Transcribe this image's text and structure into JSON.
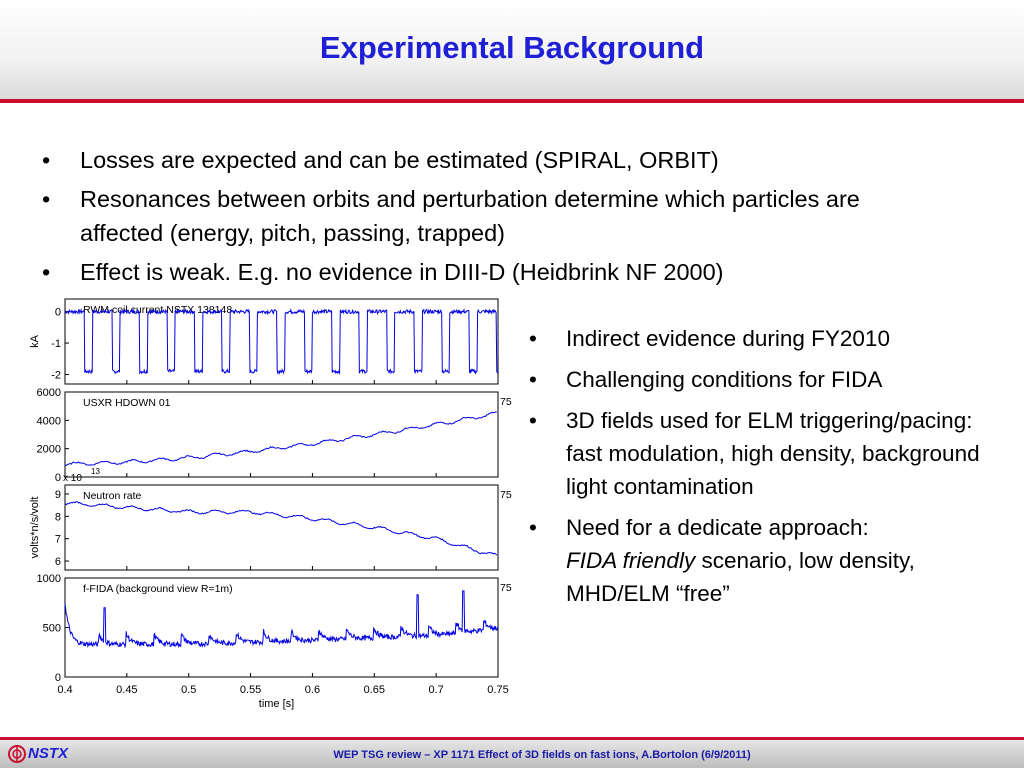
{
  "slide": {
    "title": "Experimental Background",
    "bullets_top": [
      "Losses are expected and can be estimated (SPIRAL, ORBIT)",
      "Resonances between orbits and perturbation determine which particles are affected (energy, pitch, passing, trapped)",
      "Effect is weak. E.g. no evidence in DIII-D (Heidbrink NF 2000)"
    ],
    "bullets_right": {
      "b1": "Indirect evidence during FY2010",
      "b2": "Challenging conditions for FIDA",
      "b3_line1": "3D fields used for ELM triggering/pacing:",
      "b3_line2": "fast modulation, high density, background light contamination",
      "b4_line1": "Need for a dedicate approach:",
      "b4_em": "FIDA friendly",
      "b4_rest": " scenario, low density, MHD/ELM “free”"
    }
  },
  "footer": {
    "logo": "NSTX",
    "text": "WEP TSG review – XP 1171 Effect of 3D fields on fast ions, A.Bortolon (6/9/2011)"
  },
  "chart_data": {
    "type": "line",
    "x_label": "time [s]",
    "x_ticks": [
      "0.4",
      "0.45",
      "0.5",
      "0.55",
      "0.6",
      "0.65",
      "0.7",
      "0.75"
    ],
    "xlim": [
      0.4,
      0.75
    ],
    "panels": [
      {
        "label": "RWM coil current     NSTX 138148",
        "ylabel": "kA",
        "yticks": [
          "0",
          "-1",
          "-2"
        ],
        "ylim": [
          -2.3,
          0.4
        ],
        "top_tick": "",
        "series": {
          "type": "square",
          "high": 0,
          "low": -1.9,
          "period": 0.0222,
          "duty": 0.72,
          "start": 0.4
        }
      },
      {
        "label": "USXR HDOWN 01",
        "ylabel": "",
        "yticks": [
          "6000",
          "4000",
          "2000",
          "0"
        ],
        "ylim": [
          0,
          6000
        ],
        "top_tick": "75",
        "series": {
          "type": "points",
          "x": [
            0.4,
            0.45,
            0.5,
            0.55,
            0.6,
            0.65,
            0.7,
            0.75
          ],
          "y": [
            900,
            1050,
            1350,
            1800,
            2350,
            3000,
            3700,
            4500
          ]
        }
      },
      {
        "label": "Neutron rate",
        "ylabel": "volts*n/s/volt",
        "yticks": [
          "9",
          "8",
          "7",
          "6"
        ],
        "ylim": [
          5.6,
          9.4
        ],
        "top_tick": "75",
        "scale_note": "x 10",
        "scale_exp": "13",
        "series": {
          "type": "points",
          "x": [
            0.4,
            0.45,
            0.5,
            0.55,
            0.6,
            0.65,
            0.7,
            0.75
          ],
          "y": [
            8.6,
            8.4,
            8.2,
            8.2,
            7.9,
            7.5,
            7.0,
            6.2
          ]
        }
      },
      {
        "label": "f-FIDA (background view R=1m)",
        "ylabel": "",
        "yticks": [
          "1000",
          "500",
          "0"
        ],
        "ylim": [
          0,
          1000
        ],
        "top_tick": "75",
        "series": {
          "type": "spiky",
          "base_x": [
            0.4,
            0.5,
            0.6,
            0.7,
            0.75
          ],
          "base_y": [
            330,
            330,
            370,
            420,
            490
          ],
          "spike_height": 110,
          "period": 0.0222,
          "start": 0.405,
          "big_spike": [
            {
              "x": 0.432,
              "y": 700
            },
            {
              "x": 0.685,
              "y": 830
            },
            {
              "x": 0.722,
              "y": 870
            }
          ]
        }
      }
    ]
  }
}
